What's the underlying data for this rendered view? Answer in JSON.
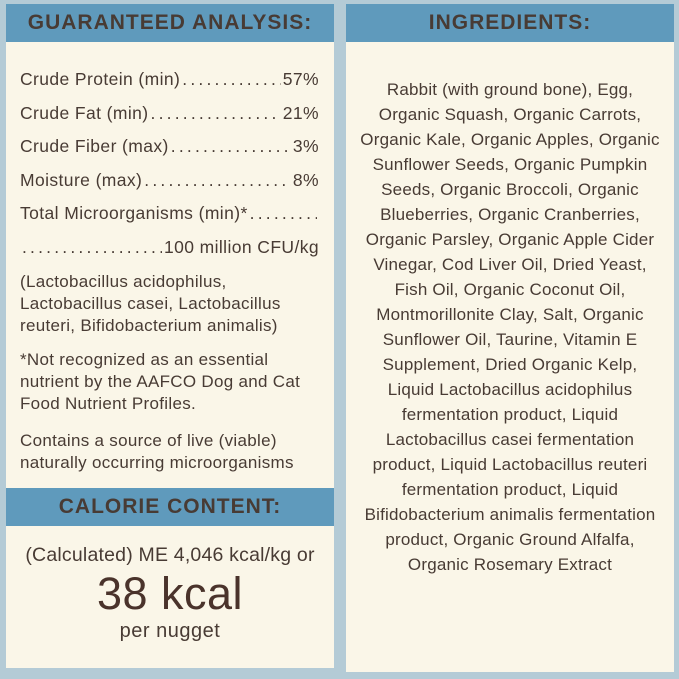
{
  "colors": {
    "bg": "#b4cbd6",
    "panel": "#faf6e8",
    "bar": "#5f9abc",
    "text": "#483b34",
    "accent": "#4a332b"
  },
  "left_panel": {
    "header": "GUARANTEED ANALYSIS:",
    "analysis_rows": [
      {
        "label": "Crude Protein (min)",
        "value": "57%"
      },
      {
        "label": "Crude Fat (min)",
        "value": "21%"
      },
      {
        "label": "Crude Fiber (max)",
        "value": "3%"
      },
      {
        "label": "Moisture (max)",
        "value": "8%"
      },
      {
        "label": "Total Microorganisms (min)*",
        "value": ""
      },
      {
        "label": "",
        "value": "100 million CFU/kg"
      }
    ],
    "microorganism_list": "(Lactobacillus acidophilus, Lactobacillus casei, Lactobacillus reuteri, Bifidobacterium animalis)",
    "footnote": "*Not recognized as an essential nutrient by the AAFCO Dog and Cat Food Nutrient Profiles.",
    "live_note": "Contains a source of live (viable) naturally occurring microorganisms",
    "calorie_header": "CALORIE CONTENT:",
    "calorie_line": "(Calculated) ME 4,046 kcal/kg or",
    "calorie_value": "38 kcal",
    "calorie_unit": "per nugget"
  },
  "right_panel": {
    "header": "INGREDIENTS:",
    "ingredients": "Rabbit (with ground bone), Egg, Organic Squash, Organic Carrots, Organic Kale, Organic Apples, Organic Sunflower Seeds, Organic Pumpkin Seeds, Organic Broccoli, Organic Blueberries, Organic Cranberries, Organic Parsley, Organic Apple Cider Vinegar, Cod Liver Oil, Dried Yeast, Fish Oil, Organic Coconut Oil, Montmorillonite Clay, Salt, Organic Sunflower Oil, Taurine, Vitamin E Supplement, Dried Organic Kelp, Liquid Lactobacillus acidophilus fermentation product, Liquid Lactobacillus casei fermentation product, Liquid Lactobacillus reuteri fermentation product, Liquid Bifidobacterium animalis fermentation product, Organic Ground Alfalfa, Organic Rosemary Extract"
  }
}
